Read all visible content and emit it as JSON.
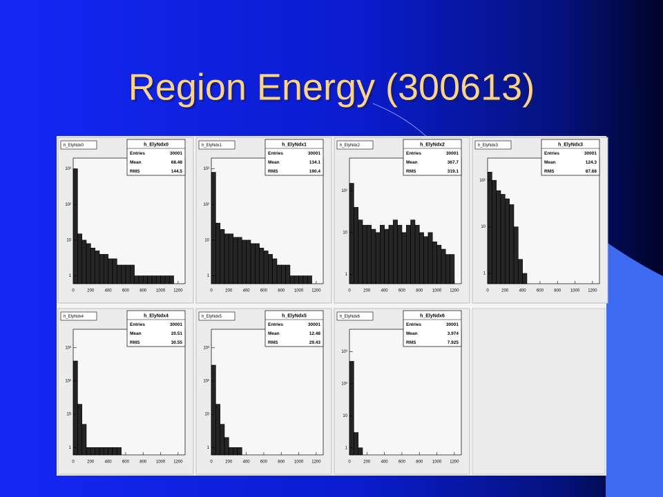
{
  "slide_title": "Region Energy (300613)",
  "chart_data": [
    {
      "type": "histogram",
      "name": "h_ElyNdx0",
      "color": "#000000",
      "logy": true,
      "grid": false,
      "stats": [
        {
          "name": "Entries",
          "value": 30001
        },
        {
          "name": "Mean",
          "value": 68.48
        },
        {
          "name": "RMS",
          "value": 144.5
        }
      ],
      "bins": [
        0,
        50,
        100,
        150,
        200,
        250,
        300,
        350,
        400,
        450,
        500,
        550,
        600,
        650,
        700,
        750,
        800,
        850,
        900,
        950,
        1000,
        1050,
        1100,
        1150,
        1200,
        1250
      ],
      "values": [
        1000,
        15,
        10,
        8,
        6,
        5,
        4,
        4,
        3,
        3,
        2,
        2,
        2,
        2,
        1,
        1,
        1,
        1,
        1,
        1,
        1,
        1,
        1,
        0,
        0
      ],
      "xlim": [
        0,
        1280
      ],
      "xticks": [
        0,
        200,
        400,
        600,
        800,
        1000,
        1200
      ],
      "ylim": [
        0.6,
        2000
      ],
      "yticks": [
        1,
        10,
        {
          "value": 100,
          "label": "10²"
        },
        {
          "value": 1000,
          "label": "10³"
        }
      ]
    },
    {
      "type": "histogram",
      "name": "h_ElyNdx1",
      "color": "#000000",
      "logy": true,
      "grid": false,
      "stats": [
        {
          "name": "Entries",
          "value": 30001
        },
        {
          "name": "Mean",
          "value": 134.1
        },
        {
          "name": "RMS",
          "value": 190.4
        }
      ],
      "bins": [
        0,
        50,
        100,
        150,
        200,
        250,
        300,
        350,
        400,
        450,
        500,
        550,
        600,
        650,
        700,
        750,
        800,
        850,
        900,
        950,
        1000,
        1050,
        1100,
        1150,
        1200,
        1250
      ],
      "values": [
        800,
        30,
        20,
        15,
        15,
        12,
        12,
        10,
        10,
        8,
        8,
        6,
        5,
        4,
        3,
        2,
        2,
        2,
        1,
        1,
        1,
        1,
        1,
        0,
        0
      ],
      "xlim": [
        0,
        1280
      ],
      "xticks": [
        0,
        200,
        400,
        600,
        800,
        1000,
        1200
      ],
      "ylim": [
        0.6,
        2000
      ],
      "yticks": [
        1,
        10,
        {
          "value": 100,
          "label": "10²"
        },
        {
          "value": 1000,
          "label": "10³"
        }
      ]
    },
    {
      "type": "histogram",
      "name": "h_ElyNdx2",
      "color": "#000000",
      "logy": true,
      "grid": false,
      "stats": [
        {
          "name": "Entries",
          "value": 30001
        },
        {
          "name": "Mean",
          "value": 367.7
        },
        {
          "name": "RMS",
          "value": 319.1
        }
      ],
      "bins": [
        0,
        50,
        100,
        150,
        200,
        250,
        300,
        350,
        400,
        450,
        500,
        550,
        600,
        650,
        700,
        750,
        800,
        850,
        900,
        950,
        1000,
        1050,
        1100,
        1150,
        1200,
        1250
      ],
      "values": [
        150,
        40,
        20,
        15,
        15,
        12,
        10,
        15,
        12,
        15,
        20,
        15,
        10,
        15,
        20,
        15,
        10,
        8,
        10,
        6,
        5,
        4,
        3,
        3,
        0
      ],
      "xlim": [
        0,
        1280
      ],
      "xticks": [
        0,
        200,
        400,
        600,
        800,
        1000,
        1200
      ],
      "ylim": [
        0.6,
        600
      ],
      "yticks": [
        1,
        10,
        {
          "value": 100,
          "label": "10²"
        }
      ]
    },
    {
      "type": "histogram",
      "name": "h_ElyNdx3",
      "color": "#000000",
      "logy": true,
      "grid": false,
      "stats": [
        {
          "name": "Entries",
          "value": 30001
        },
        {
          "name": "Mean",
          "value": 124.3
        },
        {
          "name": "RMS",
          "value": 87.68
        }
      ],
      "bins": [
        0,
        50,
        100,
        150,
        200,
        250,
        300,
        350,
        400,
        450,
        500,
        550,
        600,
        650,
        700,
        750,
        800,
        850,
        900,
        950,
        1000,
        1050,
        1100,
        1150,
        1200,
        1250
      ],
      "values": [
        150,
        100,
        60,
        50,
        40,
        30,
        10,
        2,
        1,
        0,
        0,
        0,
        0,
        0,
        0,
        0,
        0,
        0,
        0,
        0,
        0,
        0,
        0,
        0,
        0
      ],
      "xlim": [
        0,
        1280
      ],
      "xticks": [
        0,
        200,
        400,
        600,
        800,
        1000,
        1200
      ],
      "ylim": [
        0.6,
        300
      ],
      "yticks": [
        1,
        10,
        {
          "value": 100,
          "label": "10²"
        }
      ]
    },
    {
      "type": "histogram",
      "name": "h_ElyNdx4",
      "color": "#000000",
      "logy": true,
      "grid": false,
      "stats": [
        {
          "name": "Entries",
          "value": 30001
        },
        {
          "name": "Mean",
          "value": 20.51
        },
        {
          "name": "RMS",
          "value": 30.55
        }
      ],
      "bins": [
        0,
        50,
        100,
        150,
        200,
        250,
        300,
        350,
        400,
        450,
        500,
        550,
        600,
        650,
        700,
        750,
        800,
        850,
        900,
        950,
        1000,
        1050,
        1100,
        1150,
        1200,
        1250
      ],
      "values": [
        400,
        20,
        5,
        1,
        1,
        1,
        1,
        1,
        1,
        1,
        1,
        0,
        0,
        0,
        0,
        0,
        0,
        0,
        0,
        0,
        0,
        0,
        0,
        0,
        0
      ],
      "xlim": [
        0,
        1280
      ],
      "xticks": [
        0,
        200,
        400,
        600,
        800,
        1000,
        1200
      ],
      "ylim": [
        0.6,
        3600
      ],
      "yticks": [
        1,
        10,
        {
          "value": 100,
          "label": "10²"
        },
        {
          "value": 1000,
          "label": "10³"
        }
      ]
    },
    {
      "type": "histogram",
      "name": "h_ElyNdx5",
      "color": "#000000",
      "logy": true,
      "grid": false,
      "stats": [
        {
          "name": "Entries",
          "value": 30001
        },
        {
          "name": "Mean",
          "value": 12.48
        },
        {
          "name": "RMS",
          "value": 29.43
        }
      ],
      "bins": [
        0,
        50,
        100,
        150,
        200,
        250,
        300,
        350,
        400,
        450,
        500,
        550,
        600,
        650,
        700,
        750,
        800,
        850,
        900,
        950,
        1000,
        1050,
        1100,
        1150,
        1200,
        1250
      ],
      "values": [
        300,
        20,
        5,
        2,
        1,
        1,
        1,
        0,
        0,
        0,
        0,
        0,
        0,
        0,
        0,
        0,
        0,
        0,
        0,
        0,
        0,
        0,
        0,
        0,
        0
      ],
      "xlim": [
        0,
        1280
      ],
      "xticks": [
        0,
        200,
        400,
        600,
        800,
        1000,
        1200
      ],
      "ylim": [
        0.6,
        3600
      ],
      "yticks": [
        1,
        10,
        {
          "value": 100,
          "label": "10²"
        },
        {
          "value": 1000,
          "label": "10³"
        }
      ]
    },
    {
      "type": "histogram",
      "name": "h_ElyNdx6",
      "color": "#000000",
      "logy": true,
      "grid": false,
      "stats": [
        {
          "name": "Entries",
          "value": 30001
        },
        {
          "name": "Mean",
          "value": 3.974
        },
        {
          "name": "RMS",
          "value": 7.925
        }
      ],
      "bins": [
        0,
        50,
        100,
        150,
        200,
        250,
        300,
        350,
        400,
        450,
        500,
        550,
        600,
        650,
        700,
        750,
        800,
        850,
        900,
        950,
        1000,
        1050,
        1100,
        1150,
        1200,
        1250
      ],
      "values": [
        500,
        3,
        1,
        0,
        0,
        0,
        0,
        0,
        0,
        0,
        0,
        0,
        0,
        0,
        0,
        0,
        0,
        0,
        0,
        0,
        0,
        0,
        0,
        0,
        0
      ],
      "xlim": [
        0,
        1280
      ],
      "xticks": [
        0,
        200,
        400,
        600,
        800,
        1000,
        1200
      ],
      "ylim": [
        0.6,
        5000
      ],
      "yticks": [
        1,
        10,
        {
          "value": 100,
          "label": "10²"
        },
        {
          "value": 1000,
          "label": "10³"
        }
      ]
    }
  ]
}
